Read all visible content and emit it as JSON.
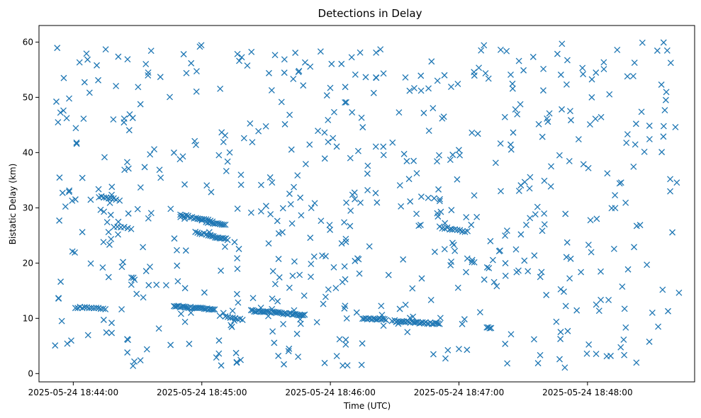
{
  "chart_data": {
    "type": "scatter",
    "title": "Detections in Delay",
    "xlabel": "Time (UTC)",
    "ylabel": "Bistatic Delay (km)",
    "marker": "x",
    "color": "#1f77b4",
    "grid": false,
    "x_time_range_seconds": [
      "2025-05-24 18:43:50",
      "2025-05-24 18:48:44"
    ],
    "xlim": [
      "2025-05-24 18:43:44",
      "2025-05-24 18:48:50"
    ],
    "xticks": [
      "2025-05-24 18:44:00",
      "2025-05-24 18:45:00",
      "2025-05-24 18:46:00",
      "2025-05-24 18:47:00",
      "2025-05-24 18:48:00"
    ],
    "ylim": [
      -1.5,
      63
    ],
    "yticks": [
      "0",
      "10",
      "20",
      "30",
      "40",
      "50",
      "60"
    ],
    "tracks": [
      {
        "name": "",
        "start": "2025-05-24 18:44:01",
        "end": "2025-05-24 18:44:15",
        "y_start": 12.0,
        "y_end": 11.7,
        "count": 14
      },
      {
        "name": "",
        "start": "2025-05-24 18:44:12",
        "end": "2025-05-24 18:44:20",
        "y_start": 32.0,
        "y_end": 31.6,
        "count": 8
      },
      {
        "name": "",
        "start": "2025-05-24 18:44:19",
        "end": "2025-05-24 18:44:27",
        "y_start": 26.6,
        "y_end": 26.3,
        "count": 6
      },
      {
        "name": "",
        "start": "2025-05-24 18:44:47",
        "end": "2025-05-24 18:45:06",
        "y_start": 12.2,
        "y_end": 11.6,
        "count": 28
      },
      {
        "name": "",
        "start": "2025-05-24 18:44:50",
        "end": "2025-05-24 18:45:00",
        "y_start": 28.8,
        "y_end": 27.8,
        "count": 12
      },
      {
        "name": "",
        "start": "2025-05-24 18:44:57",
        "end": "2025-05-24 18:45:04",
        "y_start": 25.6,
        "y_end": 25.0,
        "count": 8
      },
      {
        "name": "",
        "start": "2025-05-24 18:44:58",
        "end": "2025-05-24 18:45:05",
        "y_start": 28.0,
        "y_end": 27.6,
        "count": 8
      },
      {
        "name": "",
        "start": "2025-05-24 18:45:02",
        "end": "2025-05-24 18:45:11",
        "y_start": 27.4,
        "y_end": 26.9,
        "count": 12
      },
      {
        "name": "",
        "start": "2025-05-24 18:45:04",
        "end": "2025-05-24 18:45:12",
        "y_start": 24.9,
        "y_end": 24.3,
        "count": 12
      },
      {
        "name": "",
        "start": "2025-05-24 18:45:11",
        "end": "2025-05-24 18:45:19",
        "y_start": 10.2,
        "y_end": 9.8,
        "count": 8
      },
      {
        "name": "",
        "start": "2025-05-24 18:45:23",
        "end": "2025-05-24 18:45:48",
        "y_start": 11.4,
        "y_end": 10.6,
        "count": 36
      },
      {
        "name": "",
        "start": "2025-05-24 18:46:15",
        "end": "2025-05-24 18:46:26",
        "y_start": 10.0,
        "y_end": 9.8,
        "count": 16
      },
      {
        "name": "",
        "start": "2025-05-24 18:46:30",
        "end": "2025-05-24 18:46:51",
        "y_start": 9.5,
        "y_end": 9.0,
        "count": 30
      },
      {
        "name": "",
        "start": "2025-05-24 18:46:51",
        "end": "2025-05-24 18:47:04",
        "y_start": 26.5,
        "y_end": 25.7,
        "count": 12
      },
      {
        "name": "",
        "start": "2025-05-24 18:47:13",
        "end": "2025-05-24 18:47:15",
        "y_start": 8.5,
        "y_end": 8.2,
        "count": 4
      }
    ],
    "scatter_noise": {
      "count": 620,
      "seed": 20250524,
      "y_range": [
        1,
        60
      ]
    }
  }
}
